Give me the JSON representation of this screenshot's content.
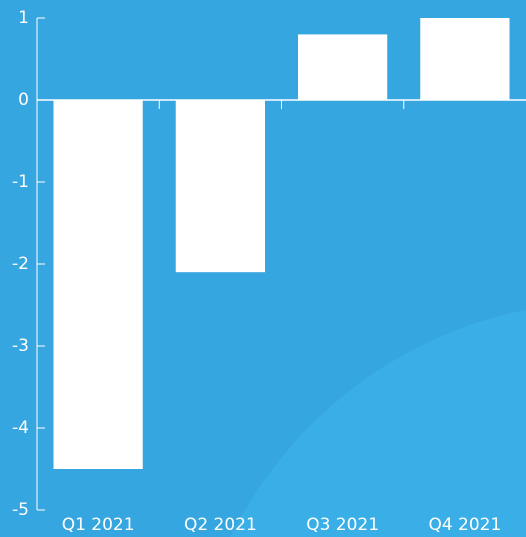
{
  "chart_data": {
    "type": "bar",
    "categories": [
      "Q1 2021",
      "Q2 2021",
      "Q3 2021",
      "Q4 2021"
    ],
    "values": [
      -4.5,
      -2.1,
      0.8,
      1.0
    ],
    "color": "#ffffff",
    "ylim": [
      -5,
      1
    ],
    "yticks": [
      -5,
      -4,
      -3,
      -2,
      -1,
      0,
      1
    ],
    "grid": false
  }
}
